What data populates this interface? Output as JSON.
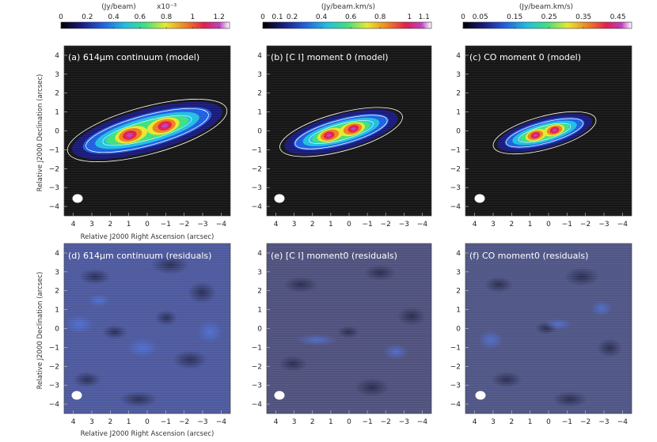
{
  "colors": {
    "model_background": "#161616",
    "residual_background": "#5a5f99",
    "contour": "#ffffff",
    "beam": "#ffffff",
    "colormap": [
      "#000000",
      "#1a1a7a",
      "#2060e0",
      "#20c0e0",
      "#40e080",
      "#e8e830",
      "#f08020",
      "#e02050",
      "#c040c0",
      "#ffffff"
    ]
  },
  "colorbars": [
    {
      "title": "(Jy/beam)",
      "multiplier": "x10⁻³",
      "ticks": [
        "0",
        "0.2",
        "0.4",
        "0.6",
        "0.8",
        "1",
        "1.2"
      ],
      "range": [
        0,
        1.28
      ]
    },
    {
      "title": "(Jy/beam.km/s)",
      "ticks": [
        "0",
        "0.1",
        "0.2",
        "0.4",
        "0.6",
        "0.8",
        "1",
        "1.1"
      ],
      "range": [
        0,
        1.15
      ]
    },
    {
      "title": "(Jy/beam.km/s)",
      "ticks": [
        "0",
        "0.05",
        "0.15",
        "0.25",
        "0.35",
        "0.45"
      ],
      "range": [
        0,
        0.49
      ]
    }
  ],
  "axes": {
    "xlabel": "Relative J2000 Right Ascension (arcsec)",
    "ylabel": "Relative J2000 Declination (arcsec)",
    "x_ticks": [
      "4",
      "3",
      "2",
      "1",
      "0",
      "−1",
      "−2",
      "−3",
      "−4"
    ],
    "y_ticks": [
      "4",
      "3",
      "2",
      "1",
      "0",
      "−1",
      "−2",
      "−3",
      "−4"
    ],
    "xlim": [
      4.5,
      -4.5
    ],
    "ylim": [
      -4.5,
      4.5
    ]
  },
  "panels": [
    {
      "title": "(a) 614μm continuum (model)",
      "kind": "model"
    },
    {
      "title": "(b) [C I] moment 0 (model)",
      "kind": "model"
    },
    {
      "title": "(c) CO moment 0 (model)",
      "kind": "model"
    },
    {
      "title": "(d) 614μm continuum (residuals)",
      "kind": "residual"
    },
    {
      "title": "(e) [C I] moment0 (residuals)",
      "kind": "residual"
    },
    {
      "title": "(f) CO moment0 (residuals)",
      "kind": "residual"
    }
  ],
  "chart_data": [
    {
      "type": "heatmap",
      "title": "(a) 614μm continuum (model)",
      "xlabel": "Relative J2000 Right Ascension (arcsec)",
      "ylabel": "Relative J2000 Declination (arcsec)",
      "xlim": [
        4.5,
        -4.5
      ],
      "ylim": [
        -4.5,
        4.5
      ],
      "peaks_arcsec": [
        [
          1.0,
          -0.2
        ],
        [
          -1.0,
          0.5
        ]
      ],
      "beam_arcsec": [
        -4.1,
        -3.4
      ]
    },
    {
      "type": "heatmap",
      "title": "(b) [C I] moment 0 (model)",
      "xlim": [
        4.5,
        -4.5
      ],
      "ylim": [
        -4.5,
        4.5
      ],
      "peaks_arcsec": [
        [
          0.8,
          -0.1
        ],
        [
          -0.1,
          0.3
        ]
      ],
      "beam_arcsec": [
        -4.1,
        -3.4
      ]
    },
    {
      "type": "heatmap",
      "title": "(c) CO moment 0 (model)",
      "xlim": [
        4.5,
        -4.5
      ],
      "ylim": [
        -4.5,
        4.5
      ],
      "peaks_arcsec": [
        [
          0.8,
          -0.1
        ],
        [
          -0.6,
          0.4
        ]
      ],
      "beam_arcsec": [
        -4.1,
        -3.4
      ]
    },
    {
      "type": "heatmap",
      "title": "(d) 614μm continuum (residuals)",
      "xlabel": "Relative J2000 Right Ascension (arcsec)",
      "ylabel": "Relative J2000 Declination (arcsec)",
      "xlim": [
        4.5,
        -4.5
      ],
      "ylim": [
        -4.5,
        4.5
      ],
      "beam_arcsec": [
        -4.1,
        -3.4
      ]
    },
    {
      "type": "heatmap",
      "title": "(e) [C I] moment0 (residuals)",
      "xlim": [
        4.5,
        -4.5
      ],
      "ylim": [
        -4.5,
        4.5
      ],
      "beam_arcsec": [
        -4.1,
        -3.4
      ]
    },
    {
      "type": "heatmap",
      "title": "(f) CO moment0 (residuals)",
      "xlim": [
        4.5,
        -4.5
      ],
      "ylim": [
        -4.5,
        4.5
      ],
      "beam_arcsec": [
        -4.1,
        -3.4
      ]
    }
  ]
}
